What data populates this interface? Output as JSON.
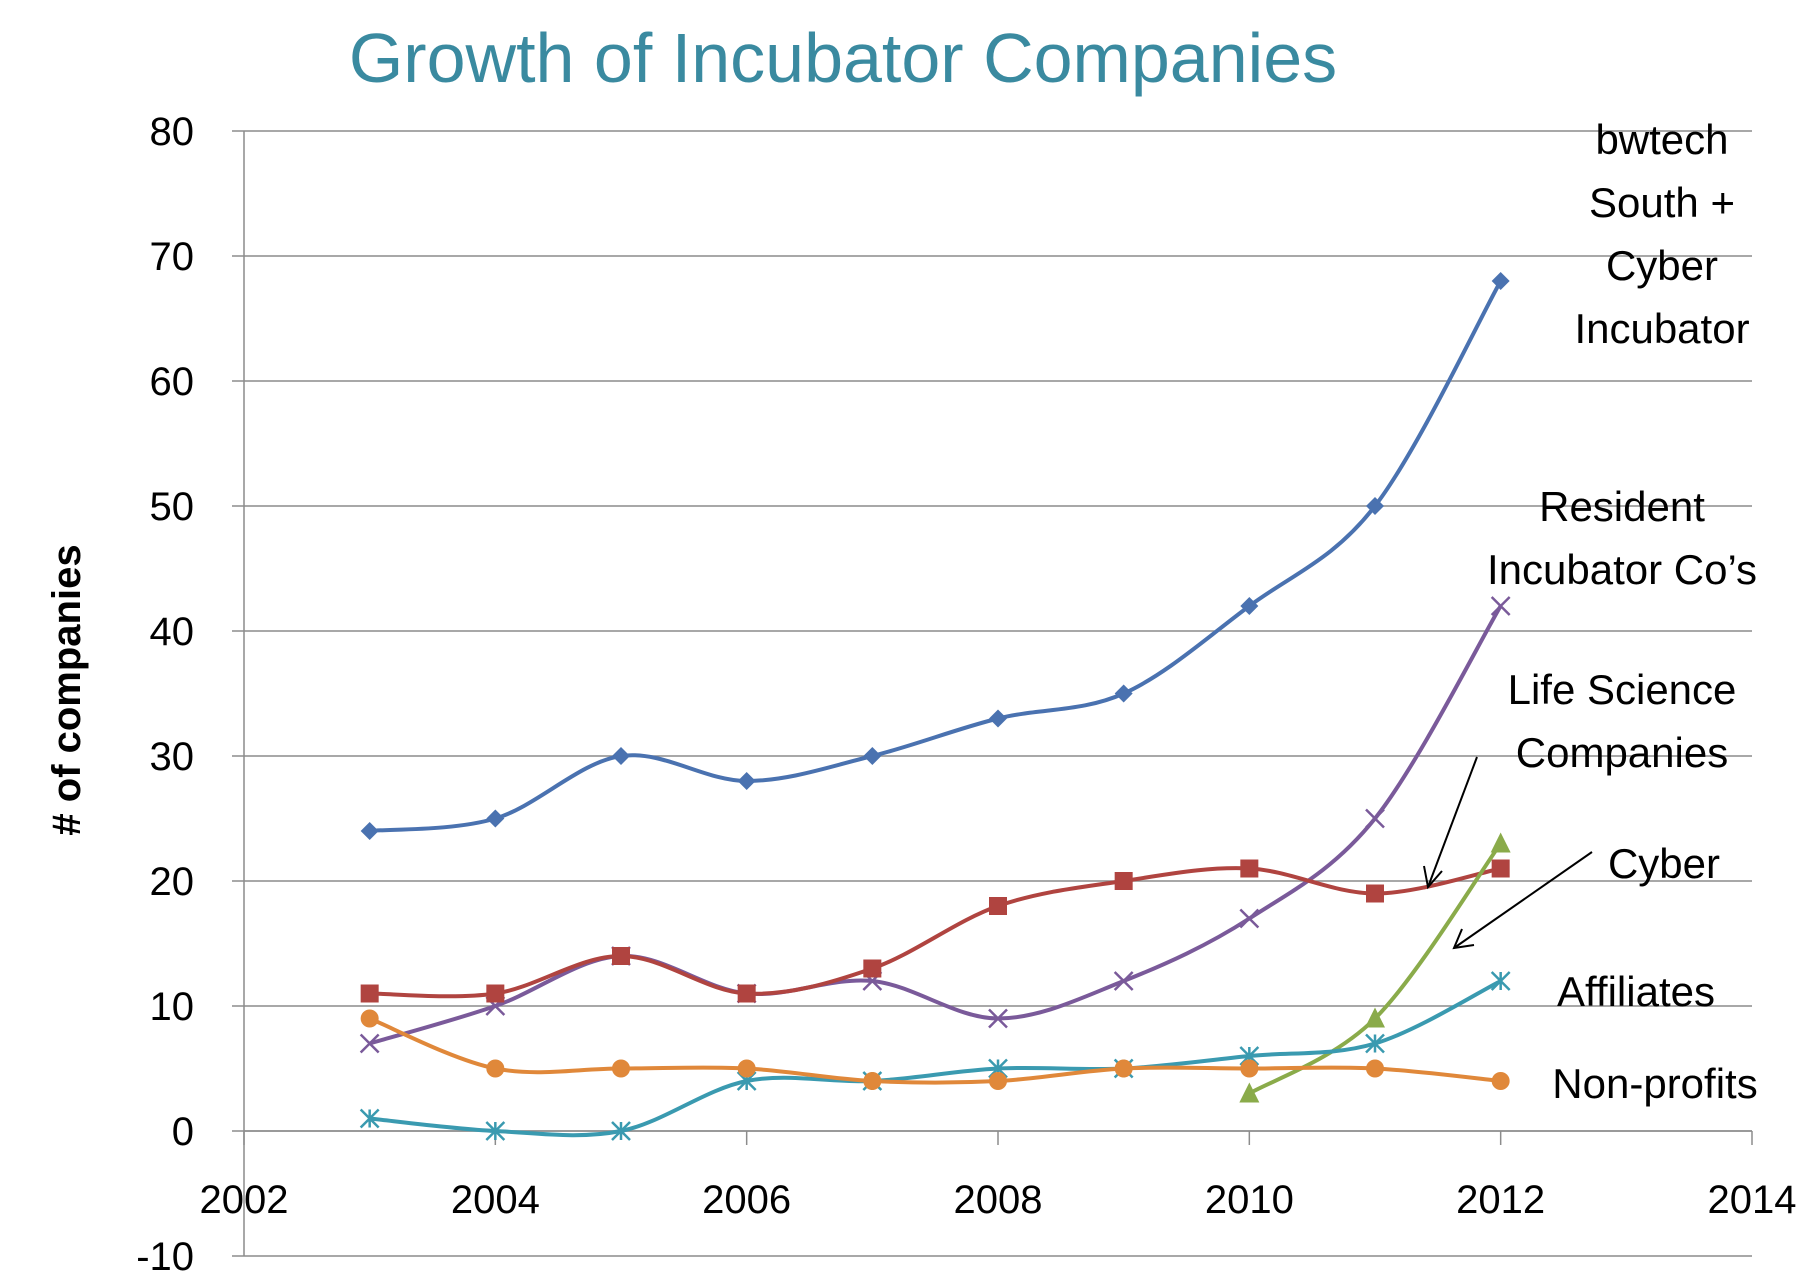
{
  "chart_data": {
    "type": "line",
    "title": "Growth of Incubator Companies",
    "y_label": "# of companies",
    "x": [
      2003,
      2004,
      2005,
      2006,
      2007,
      2008,
      2009,
      2010,
      2011,
      2012
    ],
    "xlim": [
      2002,
      2014
    ],
    "xticks": [
      2002,
      2004,
      2006,
      2008,
      2010,
      2012,
      2014
    ],
    "ylim": [
      -10,
      80
    ],
    "yticks": [
      -10,
      0,
      10,
      20,
      30,
      40,
      50,
      60,
      70,
      80
    ],
    "grid": true,
    "smooth": true,
    "series": [
      {
        "name": "bwtech South + Cyber Incubator",
        "color": "#4a72b0",
        "marker": "diamond",
        "values": [
          24,
          25,
          30,
          28,
          30,
          33,
          35,
          42,
          50,
          68
        ]
      },
      {
        "name": "Resident Incubator Co’s",
        "color": "#7a5a9a",
        "marker": "x",
        "values": [
          7,
          10,
          14,
          11,
          12,
          9,
          12,
          17,
          25,
          42
        ]
      },
      {
        "name": "Life Science Companies",
        "color": "#b04440",
        "marker": "square",
        "values": [
          11,
          11,
          14,
          11,
          13,
          18,
          20,
          21,
          19,
          21
        ]
      },
      {
        "name": "Cyber",
        "color": "#8aab4a",
        "marker": "triangle",
        "values": [
          null,
          null,
          null,
          null,
          null,
          null,
          null,
          3,
          9,
          23
        ]
      },
      {
        "name": "Affiliates",
        "color": "#3a9ab0",
        "marker": "asterisk",
        "values": [
          1,
          0,
          0,
          4,
          4,
          5,
          5,
          6,
          7,
          12
        ]
      },
      {
        "name": "Non-profits",
        "color": "#e0883a",
        "marker": "circle",
        "values": [
          9,
          5,
          5,
          5,
          4,
          4,
          5,
          5,
          5,
          4
        ]
      }
    ]
  }
}
